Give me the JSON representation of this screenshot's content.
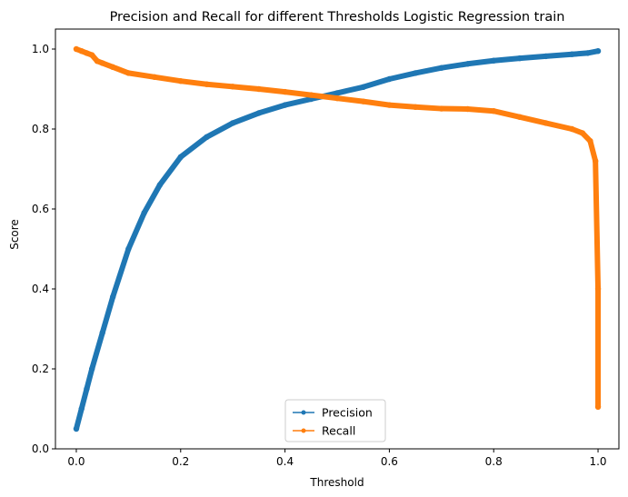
{
  "chart_data": {
    "type": "line",
    "title": "Precision and Recall for different Thresholds Logistic Regression train",
    "xlabel": "Threshold",
    "ylabel": "Score",
    "xlim": [
      -0.04,
      1.04
    ],
    "ylim": [
      0.0,
      1.05
    ],
    "xticks": [
      0.0,
      0.2,
      0.4,
      0.6,
      0.8,
      1.0
    ],
    "xtick_labels": [
      "0.0",
      "0.2",
      "0.4",
      "0.6",
      "0.8",
      "1.0"
    ],
    "yticks": [
      0.0,
      0.2,
      0.4,
      0.6,
      0.8,
      1.0
    ],
    "ytick_labels": [
      "0.0",
      "0.2",
      "0.4",
      "0.6",
      "0.8",
      "1.0"
    ],
    "grid": false,
    "legend_position": "lower-center",
    "series": [
      {
        "name": "Precision",
        "color": "#1f77b4",
        "marker": "point",
        "x": [
          0.0,
          0.01,
          0.02,
          0.03,
          0.05,
          0.07,
          0.1,
          0.13,
          0.16,
          0.2,
          0.25,
          0.3,
          0.35,
          0.4,
          0.45,
          0.5,
          0.55,
          0.6,
          0.65,
          0.7,
          0.75,
          0.8,
          0.85,
          0.9,
          0.95,
          0.98,
          1.0
        ],
        "y": [
          0.05,
          0.1,
          0.15,
          0.2,
          0.29,
          0.38,
          0.5,
          0.59,
          0.66,
          0.73,
          0.78,
          0.815,
          0.84,
          0.86,
          0.875,
          0.89,
          0.905,
          0.925,
          0.94,
          0.953,
          0.963,
          0.971,
          0.977,
          0.982,
          0.987,
          0.99,
          0.995
        ]
      },
      {
        "name": "Recall",
        "color": "#ff7f0e",
        "marker": "point",
        "x": [
          0.0,
          0.01,
          0.02,
          0.03,
          0.04,
          0.05,
          0.07,
          0.1,
          0.15,
          0.2,
          0.25,
          0.3,
          0.35,
          0.4,
          0.45,
          0.5,
          0.55,
          0.6,
          0.65,
          0.7,
          0.75,
          0.8,
          0.85,
          0.9,
          0.95,
          0.97,
          0.985,
          0.995,
          1.0,
          1.0
        ],
        "y": [
          1.0,
          0.995,
          0.99,
          0.985,
          0.97,
          0.965,
          0.955,
          0.94,
          0.93,
          0.92,
          0.912,
          0.906,
          0.9,
          0.893,
          0.885,
          0.877,
          0.869,
          0.86,
          0.855,
          0.851,
          0.85,
          0.845,
          0.83,
          0.815,
          0.8,
          0.79,
          0.77,
          0.72,
          0.4,
          0.105
        ]
      }
    ]
  }
}
